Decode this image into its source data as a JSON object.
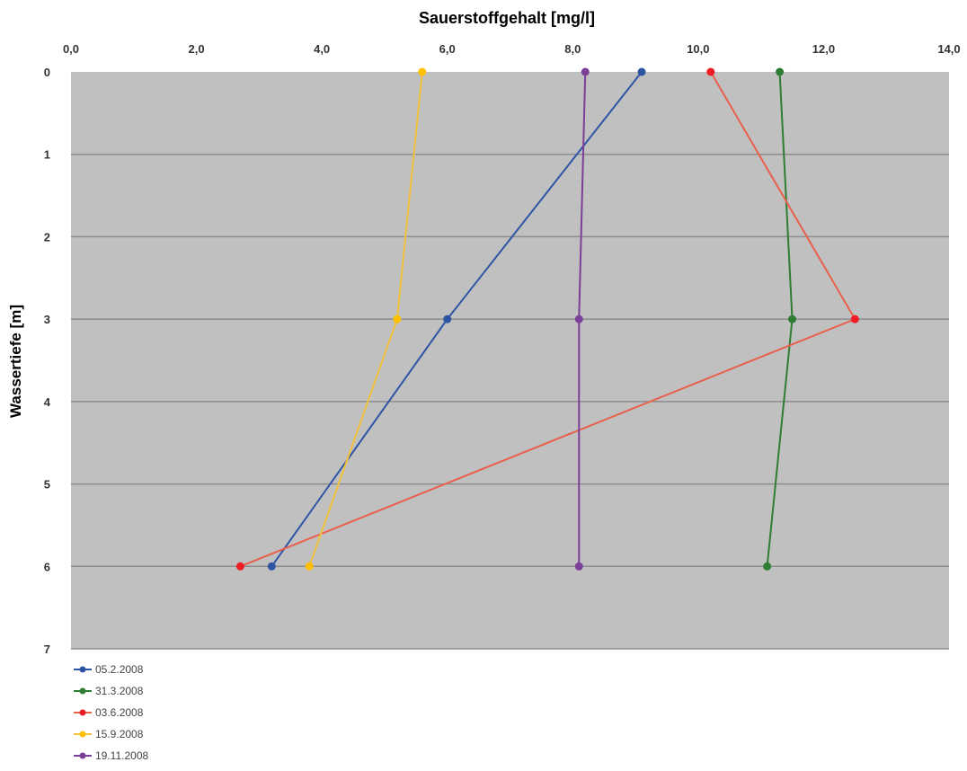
{
  "chart_data": {
    "type": "line",
    "xlabel": "Sauerstoffgehalt [mg/l]",
    "ylabel": "Wassertiefe [m]",
    "x_axis_position": "top",
    "y_axis_inverted": true,
    "xlim": [
      0,
      14
    ],
    "ylim": [
      0,
      7
    ],
    "x_ticks": [
      0,
      2,
      4,
      6,
      8,
      10,
      12,
      14
    ],
    "x_tick_labels": [
      "0,0",
      "2,0",
      "4,0",
      "6,0",
      "8,0",
      "10,0",
      "12,0",
      "14,0"
    ],
    "y_ticks": [
      0,
      1,
      2,
      3,
      4,
      5,
      6,
      7
    ],
    "y_tick_labels": [
      "0",
      "1",
      "2",
      "3",
      "4",
      "5",
      "6",
      "7"
    ],
    "grid": "horizontal",
    "plot_background": "#c0c0c0",
    "legend_position": "bottom-left",
    "series": [
      {
        "name": "05.2.2008",
        "color": "#2e54a4",
        "points": [
          {
            "x": 9.1,
            "y": 0
          },
          {
            "x": 6.0,
            "y": 3
          },
          {
            "x": 3.2,
            "y": 6
          }
        ]
      },
      {
        "name": "31.3.2008",
        "color": "#2e7d32",
        "points": [
          {
            "x": 11.3,
            "y": 0
          },
          {
            "x": 11.5,
            "y": 3
          },
          {
            "x": 11.1,
            "y": 6
          }
        ]
      },
      {
        "name": "03.6.2008",
        "color": "#e8604c",
        "marker_color": "#ee1c25",
        "points": [
          {
            "x": 10.2,
            "y": 0
          },
          {
            "x": 12.5,
            "y": 3
          },
          {
            "x": 2.7,
            "y": 6
          }
        ]
      },
      {
        "name": "15.9.2008",
        "color": "#f2c23d",
        "marker_color": "#ffc000",
        "points": [
          {
            "x": 5.6,
            "y": 0
          },
          {
            "x": 5.2,
            "y": 3
          },
          {
            "x": 3.8,
            "y": 6
          }
        ]
      },
      {
        "name": "19.11.2008",
        "color": "#7b3f98",
        "points": [
          {
            "x": 8.2,
            "y": 0
          },
          {
            "x": 8.1,
            "y": 3
          },
          {
            "x": 8.1,
            "y": 6
          }
        ]
      }
    ]
  }
}
